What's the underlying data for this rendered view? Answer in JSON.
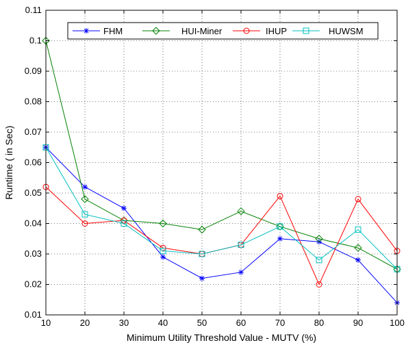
{
  "chart_data": {
    "type": "line",
    "title": "",
    "xlabel": "Minimum Utility Threshold Value - MUTV (%)",
    "ylabel": "Runtime ( in Sec)",
    "x": [
      10,
      20,
      30,
      40,
      50,
      60,
      70,
      80,
      90,
      100
    ],
    "xlim": [
      10,
      100
    ],
    "ylim": [
      0.01,
      0.11
    ],
    "xticks": [
      "10",
      "20",
      "30",
      "40",
      "50",
      "60",
      "70",
      "80",
      "90",
      "100"
    ],
    "yticks": [
      "0.01",
      "0.02",
      "0.03",
      "0.04",
      "0.05",
      "0.06",
      "0.07",
      "0.08",
      "0.09",
      "0.1",
      "0.11"
    ],
    "grid": true,
    "legend_position": "top",
    "series": [
      {
        "name": "FHM",
        "color": "#0000ff",
        "marker": "star",
        "values": [
          0.065,
          0.052,
          0.045,
          0.029,
          0.022,
          0.024,
          0.035,
          0.034,
          0.028,
          0.014
        ]
      },
      {
        "name": "HUI-Miner",
        "color": "#008000",
        "marker": "diamond",
        "values": [
          0.1,
          0.048,
          0.041,
          0.04,
          0.038,
          0.044,
          0.039,
          0.035,
          0.032,
          0.025
        ]
      },
      {
        "name": "IHUP",
        "color": "#ff0000",
        "marker": "circle",
        "values": [
          0.052,
          0.04,
          0.041,
          0.032,
          0.03,
          0.033,
          0.049,
          0.02,
          0.048,
          0.031
        ]
      },
      {
        "name": "HUWSM",
        "color": "#00bfbf",
        "marker": "square",
        "values": [
          0.065,
          0.043,
          0.04,
          0.031,
          0.03,
          0.033,
          0.039,
          0.028,
          0.038,
          0.025
        ]
      }
    ]
  }
}
